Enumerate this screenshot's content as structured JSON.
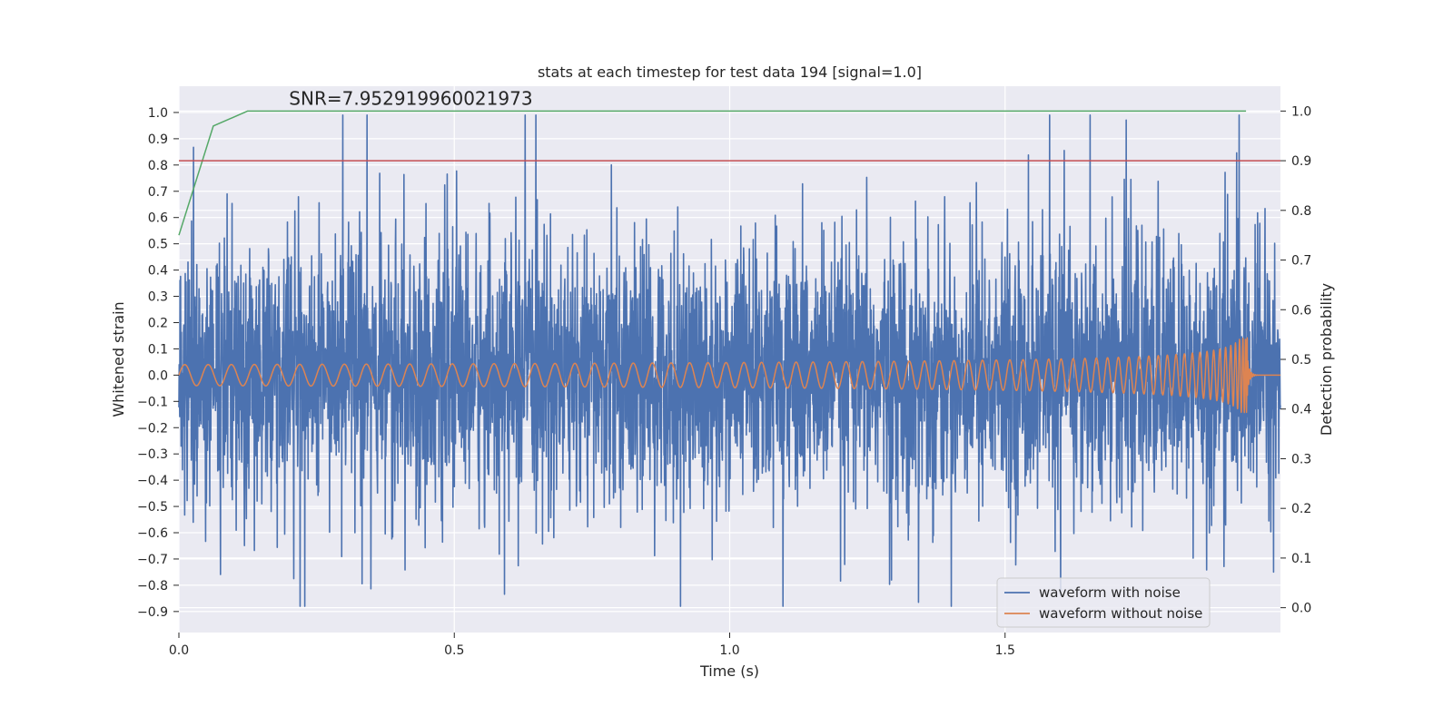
{
  "chart_data": {
    "type": "line",
    "title": "stats at each timestep for test data 194 [signal=1.0]",
    "xlabel": "Time (s)",
    "ylabel": "Whitened strain",
    "ylabel_right": "Detection probability",
    "xlim": [
      0.0,
      2.0
    ],
    "ylim": [
      -0.98,
      1.1
    ],
    "ylim_right": [
      -0.05,
      1.05
    ],
    "x_ticks": [
      0.0,
      0.5,
      1.0,
      1.5
    ],
    "x_tick_labels": [
      "0.0",
      "0.5",
      "1.0",
      "1.5"
    ],
    "y_ticks": [
      1.0,
      0.9,
      0.8,
      0.7,
      0.6,
      0.5,
      0.4,
      0.3,
      0.2,
      0.1,
      0.0,
      -0.1,
      -0.2,
      -0.3,
      -0.4,
      -0.5,
      -0.6,
      -0.7,
      -0.8,
      -0.9
    ],
    "y_tick_labels": [
      "1.0",
      "0.9",
      "0.8",
      "0.7",
      "0.6",
      "0.5",
      "0.4",
      "0.3",
      "0.2",
      "0.1",
      "0.0",
      "−0.1",
      "−0.2",
      "−0.3",
      "−0.4",
      "−0.5",
      "−0.6",
      "−0.7",
      "−0.8",
      "−0.9"
    ],
    "y_right_ticks": [
      1.0,
      0.9,
      0.8,
      0.7,
      0.6,
      0.5,
      0.4,
      0.3,
      0.2,
      0.1,
      0.0
    ],
    "y_right_tick_labels": [
      "1.0",
      "0.9",
      "0.8",
      "0.7",
      "0.6",
      "0.5",
      "0.4",
      "0.3",
      "0.2",
      "0.1",
      "0.0"
    ],
    "annotation": "SNR=7.952919960021973",
    "annotation_pos": {
      "x": 0.2,
      "y": 1.03
    },
    "legend": {
      "placement": "lower-right",
      "entries": [
        {
          "label": "waveform with noise",
          "color": "#4c72b0"
        },
        {
          "label": "waveform without noise",
          "color": "#dd8452"
        }
      ]
    },
    "series": [
      {
        "name": "waveform with noise",
        "color": "#4c72b0",
        "axis": "left",
        "kind": "noise",
        "x_range": [
          0.0,
          2.0
        ],
        "n_points": 4000,
        "y_range": [
          -0.88,
          0.99
        ]
      },
      {
        "name": "waveform without noise",
        "color": "#dd8452",
        "axis": "left",
        "kind": "chirp",
        "x_range": [
          0.0,
          1.94
        ],
        "amplitude_start": 0.04,
        "amplitude_peak": 0.22,
        "merger_time": 1.94
      },
      {
        "name": "detection probability",
        "color": "#55a868",
        "axis": "right",
        "x": [
          0.0,
          0.0625,
          0.125,
          0.1875,
          0.25,
          0.5,
          1.0,
          1.5,
          1.9375
        ],
        "y": [
          0.75,
          0.97,
          1.0,
          1.0,
          1.0,
          1.0,
          1.0,
          1.0,
          1.0
        ]
      },
      {
        "name": "threshold",
        "color": "#c44e52",
        "axis": "right",
        "x": [
          0.0,
          2.0
        ],
        "y": [
          0.9,
          0.9
        ]
      }
    ],
    "colors": {
      "background": "#ffffff",
      "plot_background": "#eaeaf2",
      "grid": "#ffffff"
    }
  }
}
